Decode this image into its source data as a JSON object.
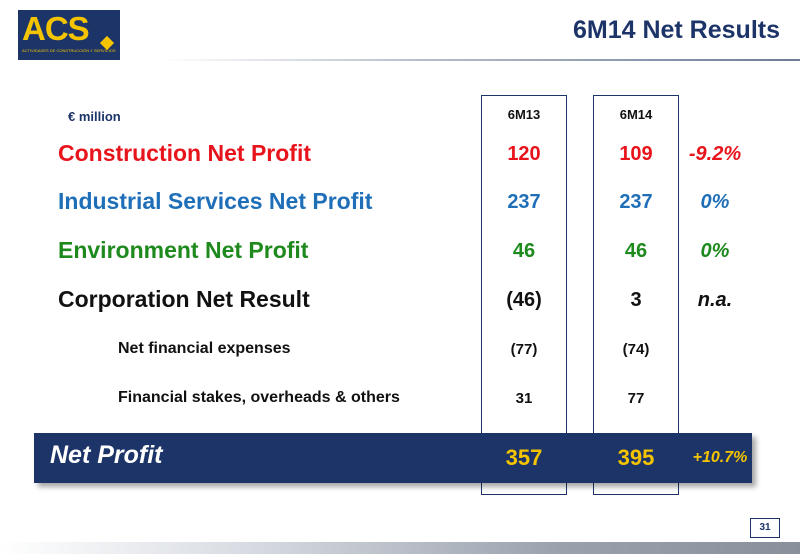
{
  "header": {
    "logo_text": "ACS",
    "logo_subtitle": "ACTIVIDADES DE CONSTRUCCIÓN Y SERVICIOS",
    "title": "6M14 Net Results"
  },
  "table": {
    "unit": "€ million",
    "columns": [
      "6M13",
      "6M14"
    ],
    "rows": [
      {
        "label": "Construction Net Profit",
        "v1": "120",
        "v2": "109",
        "change": "-9.2%",
        "color": "#e8141c"
      },
      {
        "label": "Industrial Services Net Profit",
        "v1": "237",
        "v2": "237",
        "change": "0%",
        "color": "#1f6fb8"
      },
      {
        "label": "Environment Net Profit",
        "v1": "46",
        "v2": "46",
        "change": "0%",
        "color": "#1e8a1e"
      },
      {
        "label": "Corporation Net Result",
        "v1": "(46)",
        "v2": "3",
        "change": "n.a.",
        "color": "#111111"
      }
    ],
    "sub_rows": [
      {
        "label": "Net financial expenses",
        "v1": "(77)",
        "v2": "(74)"
      },
      {
        "label": "Financial stakes, overheads & others",
        "v1": "31",
        "v2": "77"
      }
    ],
    "total": {
      "label": "Net Profit",
      "v1": "357",
      "v2": "395",
      "change": "+10.7%"
    }
  },
  "colors": {
    "navy": "#1c3468",
    "gold": "#f5c400",
    "construction": "#e8141c",
    "industrial": "#1f6fb8",
    "environment": "#1e8a1e"
  },
  "footer": {
    "page_number": "31"
  }
}
